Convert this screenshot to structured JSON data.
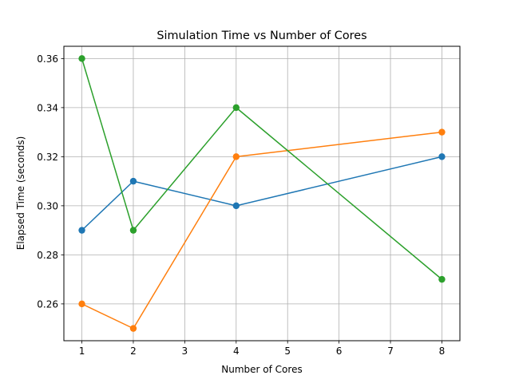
{
  "chart_data": {
    "type": "line",
    "title": "Simulation Time vs Number of Cores",
    "xlabel": "Number of Cores",
    "ylabel": "Elapsed Time (seconds)",
    "xlim": [
      0.65,
      8.35
    ],
    "ylim": [
      0.245,
      0.365
    ],
    "xticks": [
      1,
      2,
      3,
      4,
      5,
      6,
      7,
      8
    ],
    "yticks": [
      0.26,
      0.28,
      0.3,
      0.32,
      0.34,
      0.36
    ],
    "ytick_labels": [
      "0.26",
      "0.28",
      "0.30",
      "0.32",
      "0.34",
      "0.36"
    ],
    "grid": true,
    "x": [
      1,
      2,
      4,
      8
    ],
    "series": [
      {
        "color": "#1f77b4",
        "values": [
          0.29,
          0.31,
          0.3,
          0.32
        ]
      },
      {
        "color": "#ff7f0e",
        "values": [
          0.26,
          0.25,
          0.32,
          0.33
        ]
      },
      {
        "color": "#2ca02c",
        "values": [
          0.36,
          0.29,
          0.34,
          0.27
        ]
      }
    ]
  }
}
